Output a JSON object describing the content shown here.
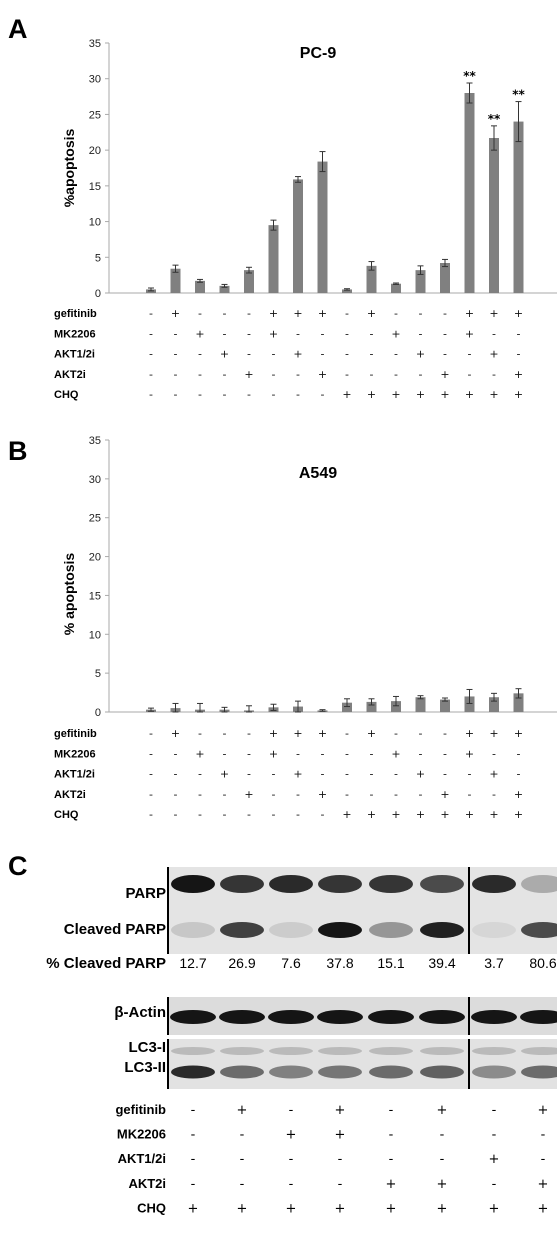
{
  "panels": [
    {
      "letter": "A",
      "title": "PC-9",
      "ylabel": "%apoptosis",
      "conditions": {
        "row_labels": [
          "gefitinib",
          "MK2206",
          "AKT1/2i",
          "AKT2i",
          "CHQ"
        ],
        "rows": [
          [
            "-",
            "+",
            "-",
            "-",
            "-",
            "+",
            "+",
            "+",
            "-",
            "+",
            "-",
            "-",
            "-",
            "+",
            "+",
            "+"
          ],
          [
            "-",
            "-",
            "+",
            "-",
            "-",
            "+",
            "-",
            "-",
            "-",
            "-",
            "+",
            "-",
            "-",
            "+",
            "-",
            "-"
          ],
          [
            "-",
            "-",
            "-",
            "+",
            "-",
            "-",
            "+",
            "-",
            "-",
            "-",
            "-",
            "+",
            "-",
            "-",
            "+",
            "-"
          ],
          [
            "-",
            "-",
            "-",
            "-",
            "+",
            "-",
            "-",
            "+",
            "-",
            "-",
            "-",
            "-",
            "+",
            "-",
            "-",
            "+"
          ],
          [
            "-",
            "-",
            "-",
            "-",
            "-",
            "-",
            "-",
            "-",
            "+",
            "+",
            "+",
            "+",
            "+",
            "+",
            "+",
            "+"
          ]
        ]
      }
    },
    {
      "letter": "B",
      "title": "A549",
      "ylabel": "% apoptosis",
      "conditions": {
        "row_labels": [
          "gefitinib",
          "MK2206",
          "AKT1/2i",
          "AKT2i",
          "CHQ"
        ],
        "rows": [
          [
            "-",
            "+",
            "-",
            "-",
            "-",
            "+",
            "+",
            "+",
            "-",
            "+",
            "-",
            "-",
            "-",
            "+",
            "+",
            "+"
          ],
          [
            "-",
            "-",
            "+",
            "-",
            "-",
            "+",
            "-",
            "-",
            "-",
            "-",
            "+",
            "-",
            "-",
            "+",
            "-",
            "-"
          ],
          [
            "-",
            "-",
            "-",
            "+",
            "-",
            "-",
            "+",
            "-",
            "-",
            "-",
            "-",
            "+",
            "-",
            "-",
            "+",
            "-"
          ],
          [
            "-",
            "-",
            "-",
            "-",
            "+",
            "-",
            "-",
            "+",
            "-",
            "-",
            "-",
            "-",
            "+",
            "-",
            "-",
            "+"
          ],
          [
            "-",
            "-",
            "-",
            "-",
            "-",
            "-",
            "-",
            "-",
            "+",
            "+",
            "+",
            "+",
            "+",
            "+",
            "+",
            "+"
          ]
        ]
      }
    }
  ],
  "chart_data": [
    {
      "type": "bar",
      "title": "PC-9",
      "ylabel": "%apoptosis",
      "ylim": [
        0,
        35
      ],
      "yticks": [
        0,
        5,
        10,
        15,
        20,
        25,
        30,
        35
      ],
      "values": [
        0.5,
        3.4,
        1.7,
        1.0,
        3.2,
        9.5,
        15.9,
        18.4,
        0.5,
        3.8,
        1.3,
        3.2,
        4.2,
        28.0,
        21.7,
        24.0
      ],
      "errors": [
        0.2,
        0.5,
        0.2,
        0.2,
        0.4,
        0.7,
        0.4,
        1.4,
        0.1,
        0.6,
        0.1,
        0.6,
        0.5,
        1.4,
        1.7,
        2.8
      ],
      "annotations": [
        {
          "index": 13,
          "text": "**"
        },
        {
          "index": 14,
          "text": "**"
        },
        {
          "index": 15,
          "text": "**"
        }
      ],
      "bar_color": "#808080"
    },
    {
      "type": "bar",
      "title": "A549",
      "ylabel": "% apoptosis",
      "ylim": [
        0,
        35
      ],
      "yticks": [
        0,
        5,
        10,
        15,
        20,
        25,
        30,
        35
      ],
      "values": [
        0.3,
        0.5,
        0.3,
        0.3,
        0.2,
        0.6,
        0.7,
        0.2,
        1.2,
        1.3,
        1.4,
        1.9,
        1.6,
        2.0,
        1.9,
        2.4
      ],
      "errors": [
        0.2,
        0.6,
        0.8,
        0.3,
        0.6,
        0.4,
        0.7,
        0.1,
        0.5,
        0.4,
        0.6,
        0.2,
        0.2,
        0.9,
        0.5,
        0.6
      ],
      "annotations": [],
      "bar_color": "#808080"
    }
  ],
  "western": {
    "letter": "C",
    "labels": {
      "parp": "PARP",
      "cleaved_parp": "Cleaved PARP",
      "pct_cleaved": "% Cleaved PARP",
      "actin": "β-Actin",
      "lc3_i": "LC3-I",
      "lc3_ii": "LC3-II"
    },
    "percent_values": [
      "12.7",
      "26.9",
      "7.6",
      "37.8",
      "15.1",
      "39.4",
      "3.7",
      "80.6"
    ],
    "conditions": {
      "row_labels": [
        "gefitinib",
        "MK2206",
        "AKT1/2i",
        "AKT2i",
        "CHQ"
      ],
      "rows": [
        [
          "-",
          "+",
          "-",
          "+",
          "-",
          "+",
          "-",
          "+"
        ],
        [
          "-",
          "-",
          "+",
          "+",
          "-",
          "-",
          "-",
          "-"
        ],
        [
          "-",
          "-",
          "-",
          "-",
          "-",
          "-",
          "+",
          "-"
        ],
        [
          "-",
          "-",
          "-",
          "-",
          "+",
          "+",
          "-",
          "+"
        ],
        [
          "+",
          "+",
          "+",
          "+",
          "+",
          "+",
          "+",
          "+"
        ]
      ]
    },
    "parp_full": [
      0.95,
      0.8,
      0.85,
      0.8,
      0.8,
      0.7,
      0.85,
      0.25
    ],
    "parp_cleaved": [
      0.12,
      0.75,
      0.1,
      0.95,
      0.35,
      0.9,
      0.05,
      0.7
    ],
    "lc3_ii": [
      0.85,
      0.55,
      0.45,
      0.5,
      0.55,
      0.6,
      0.4,
      0.55
    ]
  }
}
